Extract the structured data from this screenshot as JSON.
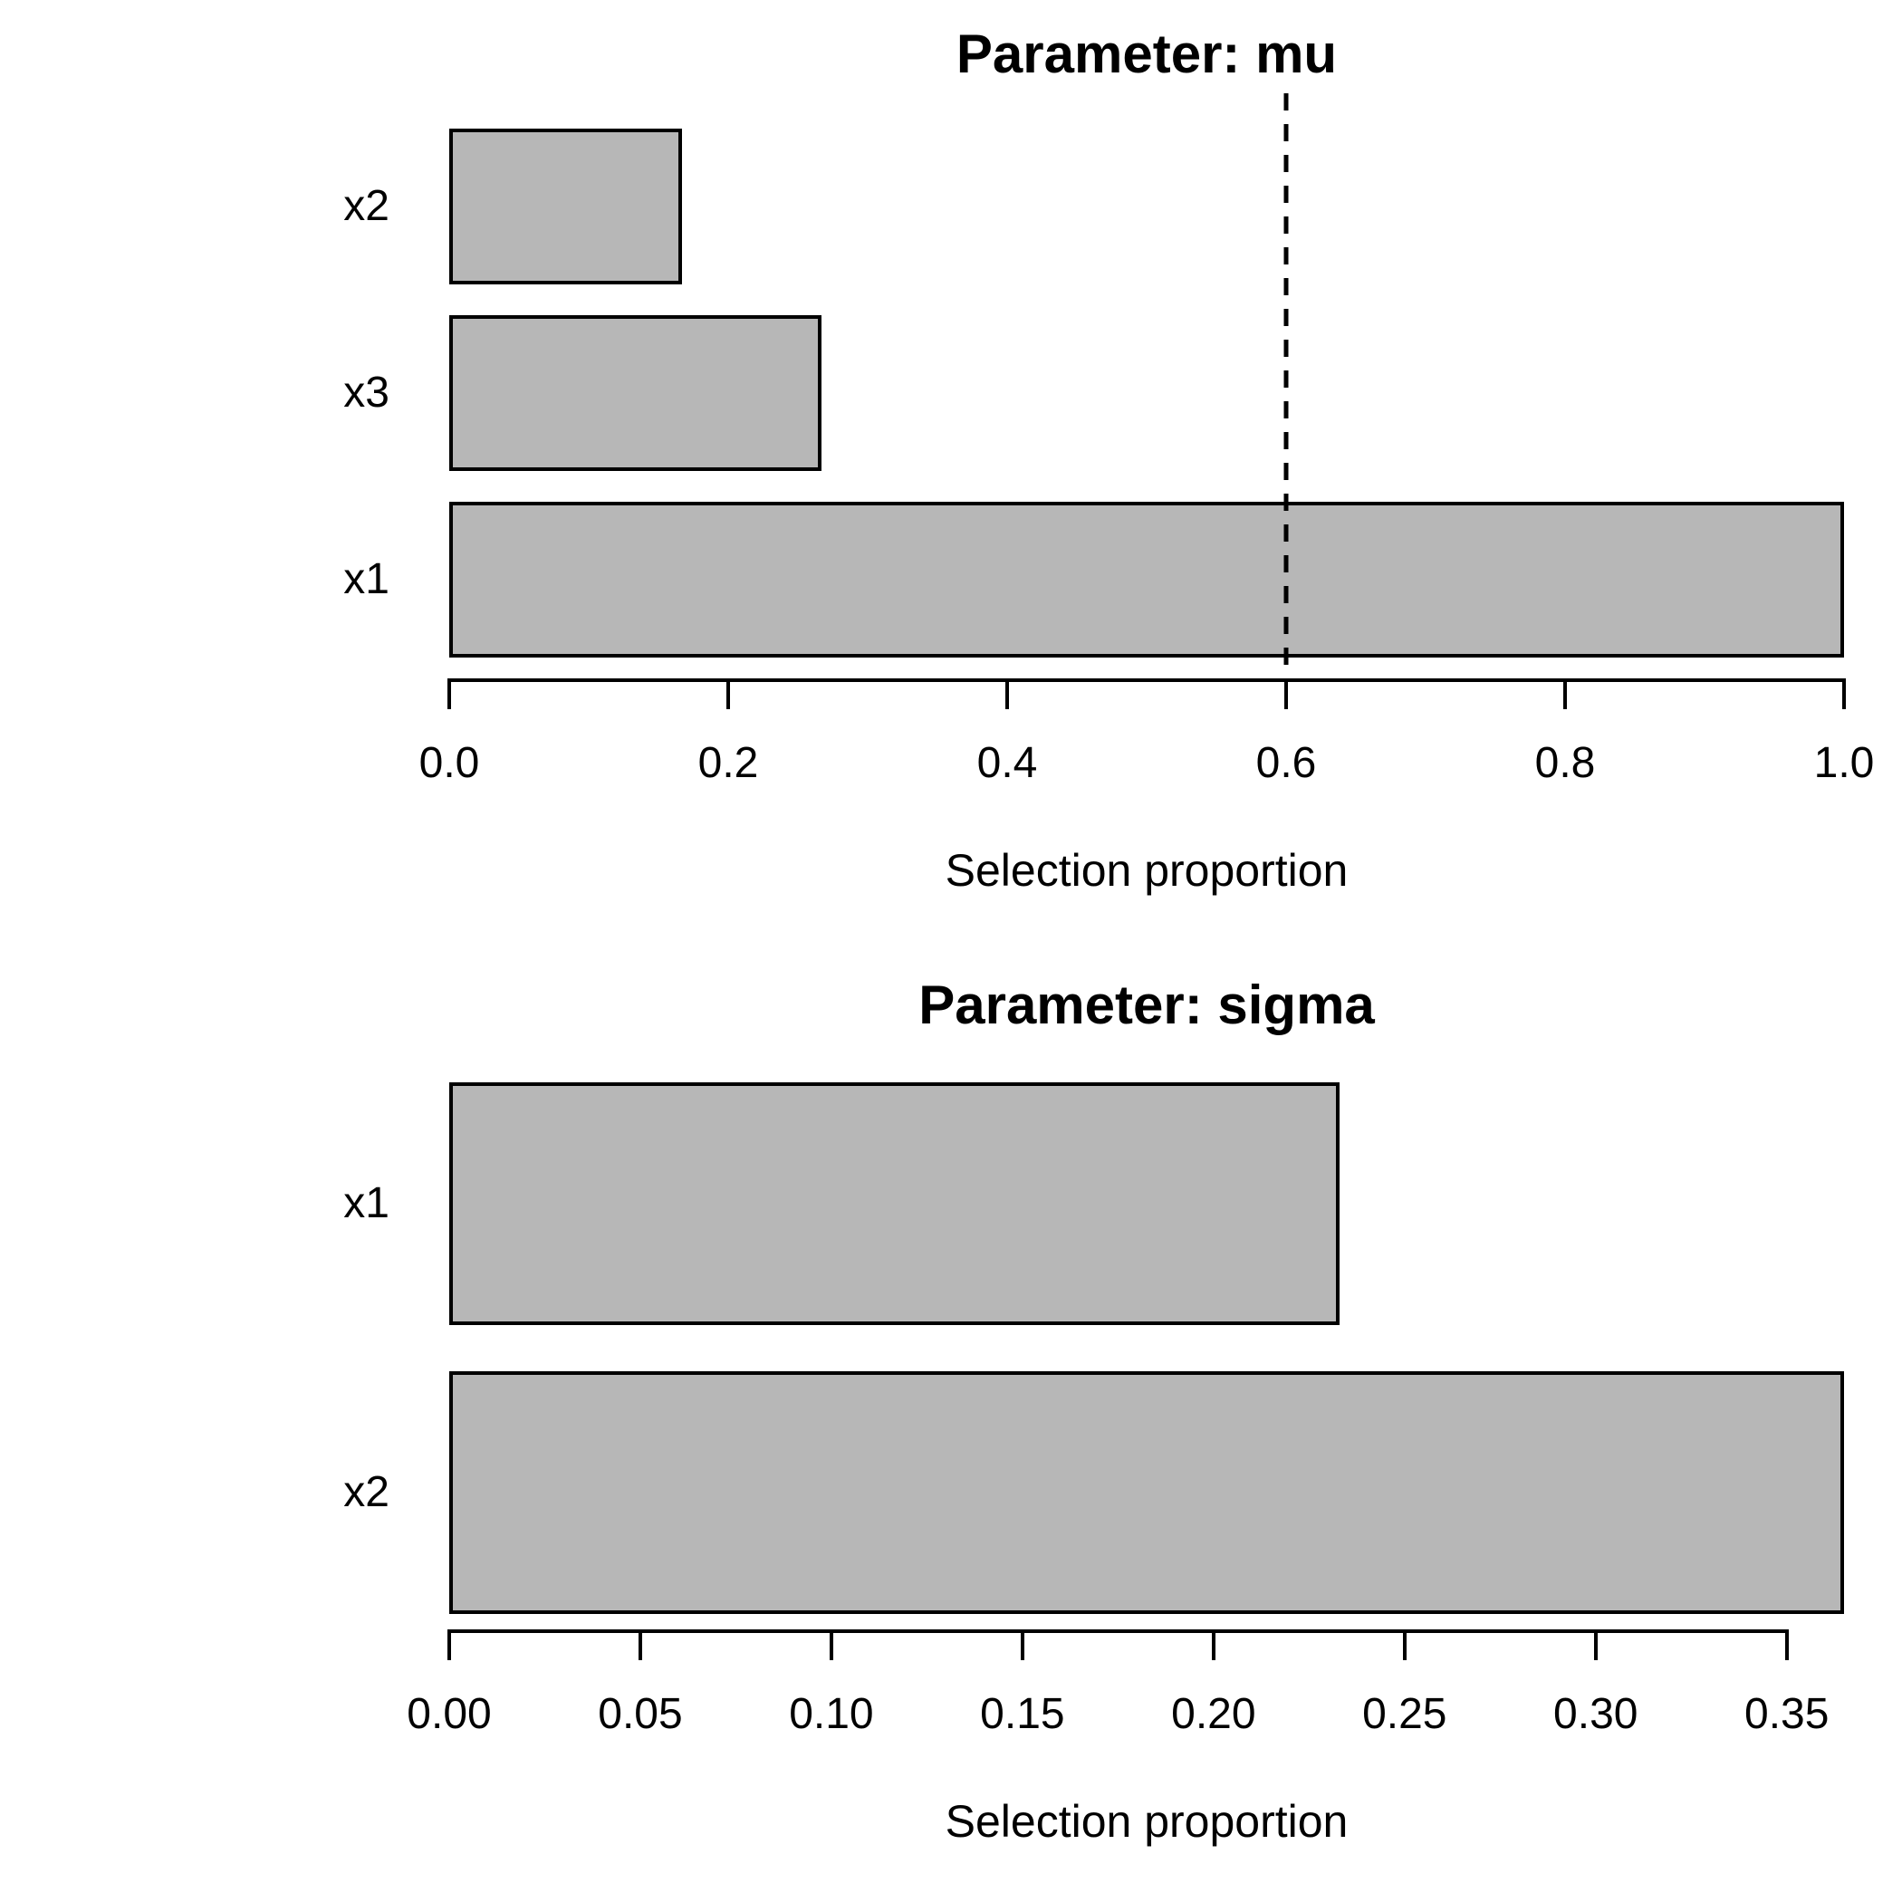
{
  "figure": {
    "background": "#ffffff",
    "text_color": "#000000",
    "bar_fill": "#b7b7b7",
    "bar_border": "#000000"
  },
  "chart_data": [
    {
      "type": "bar",
      "orientation": "horizontal",
      "title": "Parameter: mu",
      "xlabel": "Selection proportion",
      "categories_top_to_bottom": [
        "x2",
        "x3",
        "x1"
      ],
      "values_top_to_bottom": [
        0.167,
        0.267,
        1.0
      ],
      "xlim": [
        0,
        1.0
      ],
      "xtick_values": [
        0.0,
        0.2,
        0.4,
        0.6,
        0.8,
        1.0
      ],
      "xtick_labels": [
        "0.0",
        "0.2",
        "0.4",
        "0.6",
        "0.8",
        "1.0"
      ],
      "axis_line_max": 1.0,
      "reference_line": {
        "x": 0.6,
        "style": "dashed",
        "color": "#000000"
      },
      "grid": false,
      "legend": null
    },
    {
      "type": "bar",
      "orientation": "horizontal",
      "title": "Parameter: sigma",
      "xlabel": "Selection proportion",
      "categories_top_to_bottom": [
        "x1",
        "x2"
      ],
      "values_top_to_bottom": [
        0.233,
        0.365
      ],
      "xlim": [
        0,
        0.365
      ],
      "xtick_values": [
        0.0,
        0.05,
        0.1,
        0.15,
        0.2,
        0.25,
        0.3,
        0.35
      ],
      "xtick_labels": [
        "0.00",
        "0.05",
        "0.10",
        "0.15",
        "0.20",
        "0.25",
        "0.30",
        "0.35"
      ],
      "axis_line_max": 0.35,
      "reference_line": null,
      "grid": false,
      "legend": null
    }
  ]
}
